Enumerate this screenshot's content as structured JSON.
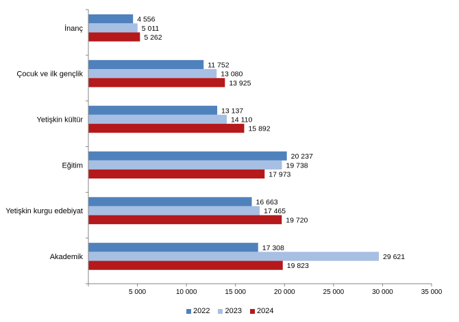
{
  "chart_data": {
    "type": "bar",
    "orientation": "horizontal",
    "categories": [
      "İnanç",
      "Çocuk ve ilk gençlik",
      "Yetişkin kültür",
      "Eğitim",
      "Yetişkin kurgu edebiyat",
      "Akademik"
    ],
    "series": [
      {
        "name": "2022",
        "color": "#4f81bd",
        "values": [
          4556,
          11752,
          13137,
          20237,
          16663,
          17308
        ],
        "labels": [
          "4 556",
          "11 752",
          "13 137",
          "20 237",
          "16 663",
          "17 308"
        ]
      },
      {
        "name": "2023",
        "color": "#a6bfe3",
        "values": [
          5011,
          13080,
          14110,
          19738,
          17465,
          29621
        ],
        "labels": [
          "5 011",
          "13 080",
          "14 110",
          "19 738",
          "17 465",
          "29 621"
        ]
      },
      {
        "name": "2024",
        "color": "#b5191b",
        "values": [
          5262,
          13925,
          15892,
          17973,
          19720,
          19823
        ],
        "labels": [
          "5 262",
          "13 925",
          "15 892",
          "17 973",
          "19 720",
          "19 823"
        ]
      }
    ],
    "xlim": [
      0,
      35000
    ],
    "ticks": [
      5000,
      10000,
      15000,
      20000,
      25000,
      30000,
      35000
    ],
    "tick_labels": [
      "5 000",
      "10 000",
      "15 000",
      "20 000",
      "25 000",
      "30 000",
      "35 000"
    ],
    "grid": false,
    "legend_position": "bottom"
  }
}
